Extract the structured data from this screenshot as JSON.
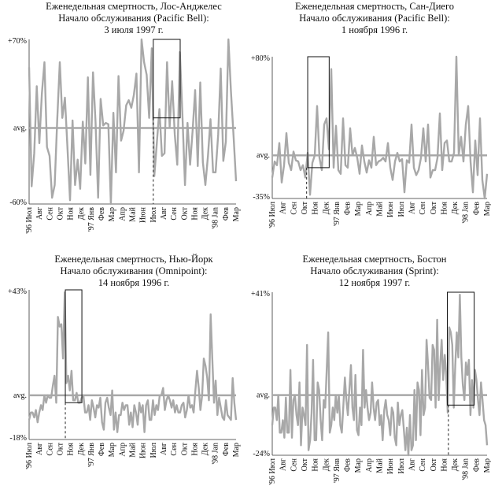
{
  "months": [
    "'96 Июл",
    "Авг",
    "Сен",
    "Окт",
    "Ноя",
    "Дек",
    "'97 Янв",
    "Фев",
    "Мар",
    "Апр",
    "Май",
    "Июн",
    "Июл",
    "Авг",
    "Сен",
    "Окт",
    "Ноя",
    "Дек",
    "'98 Jan",
    "Фев",
    "Мар"
  ],
  "chart_data": [
    {
      "type": "line",
      "title": [
        "Еженедельная смертность, Лос-Анджелес",
        "Начало обслуживания (Pacific Bell):",
        "3 июля 1997 г."
      ],
      "y_labels": {
        "top": "+70%",
        "mid": "avg.",
        "bottom": "-60%"
      },
      "ylim": [
        -60,
        70
      ],
      "x_range": [
        0,
        20
      ],
      "service_start": 12,
      "highlight": {
        "x0": 12,
        "x1": 14.6,
        "y0": 8,
        "y1": 70
      },
      "values": [
        48,
        -46,
        -20,
        33,
        -12,
        27,
        52,
        -15,
        -22,
        -55,
        -45,
        6,
        52,
        8,
        24,
        -15,
        -57,
        6,
        -45,
        -25,
        -48,
        5,
        -28,
        40,
        -37,
        44,
        5,
        -55,
        23,
        2,
        4,
        3,
        -60,
        12,
        -35,
        41,
        -10,
        -2,
        18,
        22,
        16,
        26,
        43,
        -35,
        70,
        52,
        42,
        8,
        63,
        -38,
        -12,
        15,
        -22,
        -20,
        52,
        1,
        37,
        -5,
        -29,
        60,
        11,
        -45,
        4,
        -29,
        -2,
        30,
        -30,
        36,
        -27,
        -45,
        -22,
        7,
        -35,
        -35,
        -5,
        47,
        -26,
        -11,
        70,
        29,
        -6,
        -42
      ]
    },
    {
      "type": "line",
      "title": [
        "Еженедельная смертность, Сан-Диего",
        "Начало обслуживания (Pacific Bell):",
        "1 ноября 1996 г."
      ],
      "y_labels": {
        "top": "+80%",
        "mid": "avg.",
        "bottom": "-35%"
      },
      "ylim": [
        -35,
        80
      ],
      "x_range": [
        0,
        20
      ],
      "service_start": 3.2,
      "highlight": {
        "x0": 3.3,
        "x1": 5.3,
        "y0": -10,
        "y1": 80
      },
      "values": [
        -18,
        -5,
        -8,
        10,
        -22,
        -8,
        18,
        -6,
        -12,
        3,
        -4,
        -5,
        -12,
        -8,
        -18,
        2,
        -32,
        -6,
        0,
        40,
        -2,
        -12,
        25,
        30,
        5,
        70,
        -10,
        24,
        -12,
        -15,
        30,
        -8,
        -10,
        22,
        0,
        6,
        -2,
        -15,
        8,
        -5,
        -14,
        -4,
        -10,
        15,
        -8,
        -5,
        -4,
        -2,
        -5,
        10,
        -10,
        -20,
        -5,
        2,
        -5,
        -3,
        -30,
        -4,
        -6,
        25,
        -10,
        -16,
        -12,
        -2,
        22,
        -5,
        25,
        -18,
        -12,
        -12,
        -2,
        34,
        -12,
        10,
        12,
        -5,
        -5,
        2,
        80,
        0,
        15,
        -5,
        25,
        40,
        -5,
        -30,
        12,
        -16,
        30,
        -20,
        -35,
        -15
      ]
    },
    {
      "type": "line",
      "title": [
        "Еженедельная смертность, Нью-Йорк",
        "Начало обслуживания (Omnipoint):",
        "14 ноября 1996 г."
      ],
      "y_labels": {
        "top": "+43%",
        "mid": "avg.",
        "bottom": "-18%"
      },
      "ylim": [
        -18,
        43
      ],
      "x_range": [
        0,
        20
      ],
      "service_start": 3.5,
      "highlight": {
        "x0": 3.5,
        "x1": 5.1,
        "y0": -3,
        "y1": 43
      },
      "values": [
        -10,
        -7,
        -7,
        -9,
        -6,
        -11,
        -7,
        -4,
        -6,
        0,
        -3,
        0,
        -1,
        -1,
        4,
        8,
        -3,
        32,
        28,
        29,
        15,
        42,
        5,
        8,
        2,
        10,
        -2,
        -2,
        1,
        -3,
        -3,
        -1,
        0,
        -7,
        -7,
        -4,
        -10,
        -2,
        -5,
        -9,
        -4,
        -5,
        -1,
        -11,
        -14,
        -3,
        -1,
        -5,
        -8,
        2,
        -14,
        -7,
        -15,
        -8,
        -8,
        -3,
        -6,
        -4,
        -4,
        -12,
        -7,
        -13,
        -4,
        -7,
        -12,
        -3,
        -7,
        -4,
        -15,
        -4,
        -2,
        -10,
        -10,
        -2,
        -8,
        -4,
        -6,
        0,
        0,
        3,
        -6,
        -2,
        0,
        -2,
        -5,
        -2,
        -7,
        -4,
        -7,
        -7,
        -4,
        -3,
        -9,
        -6,
        0,
        -5,
        -4,
        -7,
        2,
        10,
        3,
        -6,
        0,
        15,
        12,
        7,
        -2,
        33,
        15,
        -3,
        6,
        -8,
        -1,
        -5,
        -9,
        -10,
        -2,
        -8,
        -9,
        -10,
        7,
        -3,
        -10
      ]
    },
    {
      "type": "line",
      "title": [
        "Еженедельная смертность, Бостон",
        "Начало обслуживания (Sprint):",
        "12 ноября 1997 г."
      ],
      "y_labels": {
        "top": "+41%",
        "mid": "avg.",
        "bottom": "-24%"
      },
      "ylim": [
        -24,
        41
      ],
      "x_range": [
        0,
        20
      ],
      "service_start": 16.4,
      "highlight": {
        "x0": 16.3,
        "x1": 18.8,
        "y0": -4,
        "y1": 41
      },
      "values": [
        -12,
        -5,
        -5,
        -10,
        0,
        -15,
        -15,
        -10,
        -17,
        -1,
        -15,
        -15,
        10,
        -17,
        -2,
        0,
        -8,
        -12,
        5,
        -20,
        -5,
        -8,
        -12,
        20,
        -22,
        -18,
        -7,
        14,
        -18,
        -18,
        5,
        2,
        -10,
        -18,
        -2,
        -5,
        10,
        25,
        -15,
        -12,
        -5,
        -10,
        0,
        -7,
        0,
        -12,
        -15,
        -4,
        7,
        -2,
        -8,
        2,
        12,
        -5,
        -10,
        8,
        -14,
        -16,
        -5,
        -12,
        18,
        -5,
        2,
        -5,
        -10,
        -7,
        5,
        -5,
        -10,
        -3,
        -2,
        -12,
        -8,
        -18,
        -6,
        -2,
        -8,
        -10,
        -16,
        -5,
        -7,
        -17,
        -20,
        -3,
        -12,
        -8,
        -6,
        -14,
        -22,
        -13,
        -24,
        -8,
        -22,
        -20,
        2,
        -18,
        5,
        2,
        -16,
        10,
        -8,
        -5,
        22,
        12,
        -1,
        -2,
        20,
        18,
        -5,
        30,
        -2,
        12,
        22,
        6,
        16,
        8,
        -7,
        27,
        25,
        20,
        -5,
        12,
        25,
        15,
        40,
        15,
        4,
        -2,
        13,
        8,
        14,
        -8,
        6,
        -5,
        10,
        6,
        -2,
        -8,
        5,
        -2,
        -10,
        -12,
        -20
      ]
    }
  ]
}
